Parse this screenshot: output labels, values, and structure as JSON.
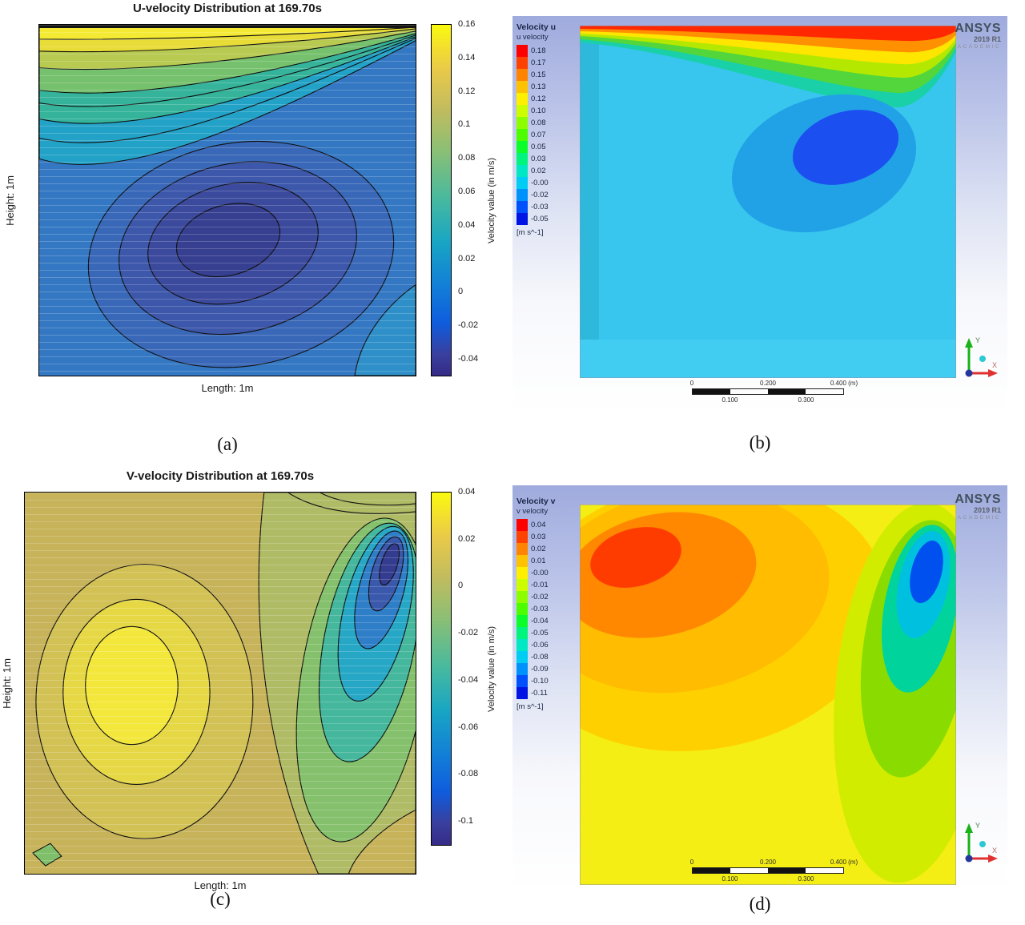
{
  "figure": {
    "captions": {
      "a": "(a)",
      "b": "(b)",
      "c": "(c)",
      "d": "(d)"
    }
  },
  "triad": {
    "x": "X",
    "y": "Y"
  },
  "ansys_brand": {
    "name": "ANSYS",
    "release": "2019 R1",
    "edition": "ACADEMIC"
  },
  "panels": {
    "a": {
      "title": "U-velocity Distribution at 169.70s",
      "xlabel": "Length: 1m",
      "ylabel": "Height: 1m",
      "colorbar_label": "Velocity value (in m/s)",
      "colorbar_ticks": [
        "0.16",
        "0.14",
        "0.12",
        "0.1",
        "0.08",
        "0.06",
        "0.04",
        "0.02",
        "0",
        "-0.02",
        "-0.04"
      ]
    },
    "b": {
      "legend_title": "Velocity u",
      "legend_subtitle": "u velocity",
      "legend_unit": "[m s^-1]",
      "legend_entries": [
        {
          "value": "0.18",
          "color": "#fe0000"
        },
        {
          "value": "0.17",
          "color": "#ff4200"
        },
        {
          "value": "0.15",
          "color": "#ff8400"
        },
        {
          "value": "0.13",
          "color": "#ffc200"
        },
        {
          "value": "0.12",
          "color": "#fff000"
        },
        {
          "value": "0.10",
          "color": "#ccfe00"
        },
        {
          "value": "0.08",
          "color": "#8cfe00"
        },
        {
          "value": "0.07",
          "color": "#4cfe00"
        },
        {
          "value": "0.05",
          "color": "#0cfe2a"
        },
        {
          "value": "0.03",
          "color": "#00f47e"
        },
        {
          "value": "0.02",
          "color": "#00e8c4"
        },
        {
          "value": "-0.00",
          "color": "#00ccf4"
        },
        {
          "value": "-0.02",
          "color": "#0092fc"
        },
        {
          "value": "-0.03",
          "color": "#0050fc"
        },
        {
          "value": "-0.05",
          "color": "#0014e4"
        }
      ],
      "ruler_top": [
        "0",
        "0.200",
        "0.400 (m)"
      ],
      "ruler_bottom": [
        "0.100",
        "0.300"
      ]
    },
    "c": {
      "title": "V-velocity Distribution at 169.70s",
      "xlabel": "Length: 1m",
      "ylabel": "Height: 1m",
      "colorbar_label": "Velocity value (in m/s)",
      "colorbar_ticks": [
        "0.04",
        "0.02",
        "0",
        "-0.02",
        "-0.04",
        "-0.06",
        "-0.08",
        "-0.1"
      ]
    },
    "d": {
      "legend_title": "Velocity v",
      "legend_subtitle": "v velocity",
      "legend_unit": "[m s^-1]",
      "legend_entries": [
        {
          "value": "0.04",
          "color": "#fe0000"
        },
        {
          "value": "0.03",
          "color": "#ff4200"
        },
        {
          "value": "0.02",
          "color": "#ff8400"
        },
        {
          "value": "0.01",
          "color": "#ffc200"
        },
        {
          "value": "-0.00",
          "color": "#fff000"
        },
        {
          "value": "-0.01",
          "color": "#ccfe00"
        },
        {
          "value": "-0.02",
          "color": "#8cfe00"
        },
        {
          "value": "-0.03",
          "color": "#4cfe00"
        },
        {
          "value": "-0.04",
          "color": "#0cfe2a"
        },
        {
          "value": "-0.05",
          "color": "#00f47e"
        },
        {
          "value": "-0.06",
          "color": "#00e8c4"
        },
        {
          "value": "-0.08",
          "color": "#00ccf4"
        },
        {
          "value": "-0.09",
          "color": "#0092fc"
        },
        {
          "value": "-0.10",
          "color": "#0050fc"
        },
        {
          "value": "-0.11",
          "color": "#0014e4"
        }
      ],
      "ruler_top": [
        "0",
        "0.200",
        "0.400 (m)"
      ],
      "ruler_bottom": [
        "0.100",
        "0.300"
      ]
    }
  },
  "chart_data": [
    {
      "id": "a",
      "type": "heatmap",
      "style": "matlab-filled-contour",
      "title": "U-velocity Distribution at 169.70s",
      "xlabel": "Length: 1m",
      "ylabel": "Height: 1m",
      "colorbar_label": "Velocity value (in m/s)",
      "colormap": "parula",
      "colorbar_ticks": [
        0.16,
        0.14,
        0.12,
        0.1,
        0.08,
        0.06,
        0.04,
        0.02,
        0,
        -0.02,
        -0.04
      ],
      "value_range": [
        -0.05,
        0.16
      ],
      "x_range_m": [
        0,
        1
      ],
      "y_range_m": [
        0,
        1
      ],
      "features": [
        {
          "region": "top moving lid",
          "u_m_per_s": "0.16 (max, yellow band)"
        },
        {
          "region": "stacked shear bands below lid",
          "u_m_per_s": "0.14 down to 0.02, thinning toward top-right corner"
        },
        {
          "region": "central recirculation core near (0.45, 0.4)",
          "u_m_per_s": "-0.02 to -0.05 (dark blue nested contours)"
        },
        {
          "region": "bulk of cavity",
          "u_m_per_s": "0 to 0.02 (blue)"
        }
      ]
    },
    {
      "id": "b",
      "type": "heatmap",
      "style": "ansys-fluent-contour",
      "title": "Velocity u contour (ANSYS 2019 R1 Academic)",
      "legend_title": "Velocity u",
      "legend_variable": "u velocity",
      "unit": "m s^-1",
      "legend_levels": [
        0.18,
        0.17,
        0.15,
        0.13,
        0.12,
        0.1,
        0.08,
        0.07,
        0.05,
        0.03,
        0.02,
        -0.0,
        -0.02,
        -0.03,
        -0.05
      ],
      "scale_bar_m": [
        0,
        0.1,
        0.2,
        0.3,
        0.4
      ],
      "features": [
        {
          "region": "top lid band",
          "u_m_per_s": "0.18 max (red) grading through orange, yellow, green; dips deepest near right side"
        },
        {
          "region": "recirculation blob right of center, upper half",
          "u_m_per_s": "-0.05 (royal blue core)"
        },
        {
          "region": "bulk of cavity",
          "u_m_per_s": "about 0 to 0.02 (cyan)"
        }
      ]
    },
    {
      "id": "c",
      "type": "heatmap",
      "style": "matlab-filled-contour",
      "title": "V-velocity Distribution at 169.70s",
      "xlabel": "Length: 1m",
      "ylabel": "Height: 1m",
      "colorbar_label": "Velocity value (in m/s)",
      "colormap": "parula",
      "colorbar_ticks": [
        0.04,
        0.02,
        0,
        -0.02,
        -0.04,
        -0.06,
        -0.08,
        -0.1
      ],
      "value_range": [
        -0.11,
        0.04
      ],
      "x_range_m": [
        0,
        1
      ],
      "y_range_m": [
        0,
        1
      ],
      "features": [
        {
          "region": "left upwelling cell centered near (0.28, 0.5)",
          "v_m_per_s": "0.02 to 0.04 (yellow nested contours)"
        },
        {
          "region": "right descending plume pointing to top-right corner",
          "v_m_per_s": "-0.02 to -0.11 (green to dark blue nested contours)"
        },
        {
          "region": "bulk of cavity",
          "v_m_per_s": "about 0 to 0.01 (tan)"
        }
      ]
    },
    {
      "id": "d",
      "type": "heatmap",
      "style": "ansys-fluent-contour",
      "title": "Velocity v contour (ANSYS 2019 R1 Academic)",
      "legend_title": "Velocity v",
      "legend_variable": "v velocity",
      "unit": "m s^-1",
      "legend_levels": [
        0.04,
        0.03,
        0.02,
        0.01,
        -0.0,
        -0.01,
        -0.02,
        -0.03,
        -0.04,
        -0.05,
        -0.06,
        -0.08,
        -0.09,
        -0.1,
        -0.11
      ],
      "scale_bar_m": [
        0,
        0.1,
        0.2,
        0.3,
        0.4
      ],
      "features": [
        {
          "region": "upper-left rising region",
          "v_m_per_s": "0.02 to 0.04 (orange with red core)"
        },
        {
          "region": "right-side descending plume",
          "v_m_per_s": "-0.02 to -0.11 (green to blue core near top-right)"
        },
        {
          "region": "bulk of cavity",
          "v_m_per_s": "about -0.00 to 0.01 (yellow)"
        }
      ]
    }
  ]
}
